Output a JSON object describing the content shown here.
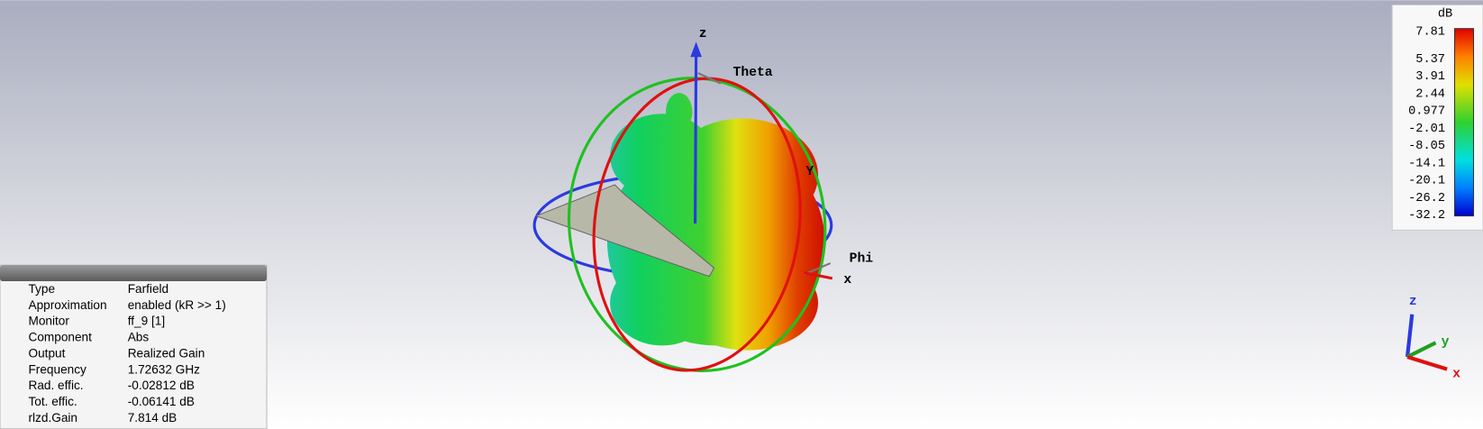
{
  "info_panel": {
    "rows": [
      [
        "Type",
        "Farfield"
      ],
      [
        "Approximation",
        "enabled (kR >> 1)"
      ],
      [
        "Monitor",
        "ff_9 [1]"
      ],
      [
        "Component",
        "Abs"
      ],
      [
        "Output",
        "Realized Gain"
      ],
      [
        "Frequency",
        "1.72632 GHz"
      ],
      [
        "Rad. effic.",
        "-0.02812 dB"
      ],
      [
        "Tot. effic.",
        "-0.06141 dB"
      ],
      [
        "rlzd.Gain",
        "7.814 dB"
      ]
    ]
  },
  "colorbar": {
    "unit": "dB",
    "ticks": [
      "7.81",
      "5.37",
      "3.91",
      "2.44",
      "0.977",
      "-2.01",
      "-8.05",
      "-14.1",
      "-20.1",
      "-26.2",
      "-32.2"
    ]
  },
  "scene_labels": {
    "z": "z",
    "theta": "Theta",
    "y": "Y",
    "phi": "Phi",
    "x": "x"
  },
  "triad": {
    "z": "z",
    "y": "y",
    "x": "x"
  }
}
